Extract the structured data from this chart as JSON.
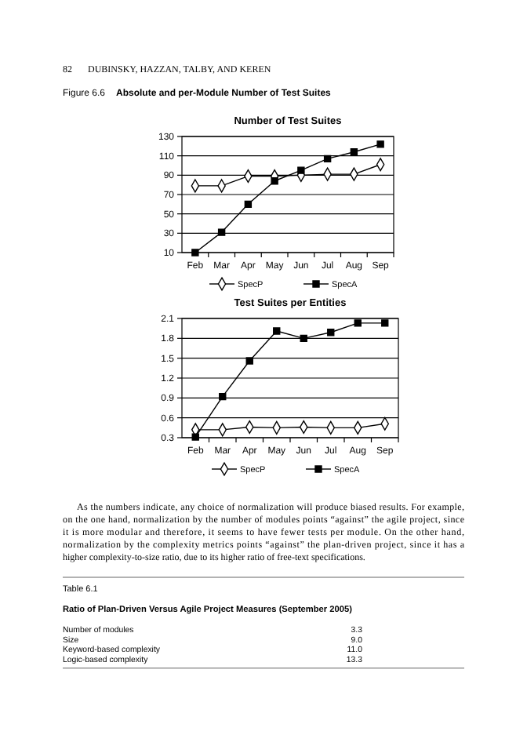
{
  "chart_data": [
    {
      "type": "line",
      "title": "Number of Test Suites",
      "annotations": [
        "82",
        "DUBINSKY, HAZZAN, TALBY, AND KEREN",
        "Figure 6.6",
        "Absolute and per-Module Number of Test Suites"
      ],
      "categories": [
        "Feb",
        "Mar",
        "Apr",
        "May",
        "Jun",
        "Jul",
        "Aug",
        "Sep"
      ],
      "series": [
        {
          "name": "SpecP",
          "color": "#000000",
          "marker": "diamond",
          "values": [
            79,
            79,
            89,
            89,
            90,
            91,
            91,
            101
          ]
        },
        {
          "name": "SpecA",
          "color": "#000000",
          "marker": "square",
          "values": [
            10,
            31,
            60,
            84,
            95,
            107,
            114,
            122
          ]
        }
      ],
      "ylim": [
        10,
        130
      ],
      "yticks": [
        10,
        30,
        50,
        70,
        90,
        110,
        130
      ],
      "grid": "y",
      "legend": "bottom"
    },
    {
      "type": "line",
      "title": "Test Suites per Entities",
      "categories": [
        "Feb",
        "Mar",
        "Apr",
        "May",
        "Jun",
        "Jul",
        "Aug",
        "Sep"
      ],
      "series": [
        {
          "name": "SpecP",
          "color": "#000000",
          "marker": "diamond",
          "values": [
            0.42,
            0.42,
            0.46,
            0.45,
            0.46,
            0.45,
            0.45,
            0.51
          ]
        },
        {
          "name": "SpecA",
          "color": "#000000",
          "marker": "square",
          "values": [
            0.31,
            0.92,
            1.46,
            1.91,
            1.8,
            1.89,
            2.03,
            2.03
          ]
        }
      ],
      "ylim": [
        0.3,
        2.1
      ],
      "yticks": [
        {
          "value": 0.3,
          "label": "0.3"
        },
        {
          "value": 0.6,
          "label": "0.6"
        },
        {
          "value": 0.9,
          "label": "0.9"
        },
        {
          "value": 1.2,
          "label": "1.2"
        },
        {
          "value": 1.5,
          "label": "1.5"
        },
        {
          "value": 1.8,
          "label": "1.8"
        },
        {
          "value": 2.1,
          "label": "2.1"
        }
      ],
      "grid": "y",
      "legend": "bottom"
    },
    {
      "type": "other",
      "title": "Table 6.1",
      "subtitle": "Ratio of Plan-Driven Versus Agile Project Measures (September 2005)",
      "annotations": [
        "As the numbers indicate, any choice of normalization will produce biased results. For example,",
        "on the one hand, normalization by the number of modules points “against” the agile project, since",
        "it is more modular and therefore, it seems to have fewer tests per module. On the other hand,",
        "normalization by the complexity metrics points “against” the plan-driven project, since it has a",
        "higher complexity-to-size ratio, due to its higher ratio of free-text specifications.",
        "3.3",
        "9.0",
        "11.0",
        "13.3"
      ],
      "categories": [
        "Number of modules",
        "Size",
        "Keyword-based complexity",
        "Logic-based complexity"
      ]
    }
  ]
}
